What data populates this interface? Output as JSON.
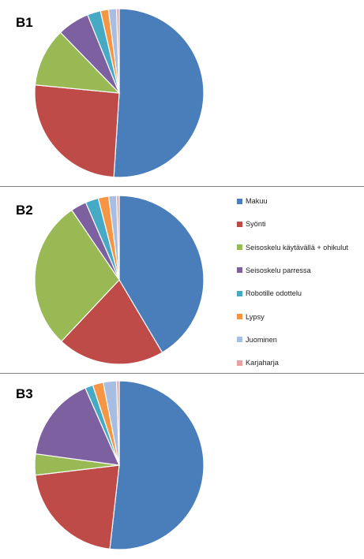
{
  "chart_data": {
    "type": "pie",
    "categories": [
      "Makuu",
      "Syönti",
      "Seisoskelu käytävällä + ohikulut",
      "Seisoskelu parressa",
      "Robotille odottelu",
      "Lypsy",
      "Juominen",
      "Karjaharja"
    ],
    "colors": [
      "#4a7ebb",
      "#be4b48",
      "#98b954",
      "#7d60a0",
      "#46aac5",
      "#f69544",
      "#a8bde2",
      "#e8a0a0"
    ],
    "legend_position": "right",
    "charts": [
      {
        "title": "B1",
        "values": [
          50,
          25,
          11,
          6,
          2.5,
          1.5,
          1.5,
          0.5
        ]
      },
      {
        "title": "B2",
        "values": [
          41.5,
          20.5,
          28.5,
          3.0,
          2.5,
          2.0,
          1.5,
          0.5
        ]
      },
      {
        "title": "B3",
        "values": [
          51,
          21,
          4,
          16,
          1.5,
          2.0,
          2.5,
          0.5
        ]
      }
    ]
  }
}
